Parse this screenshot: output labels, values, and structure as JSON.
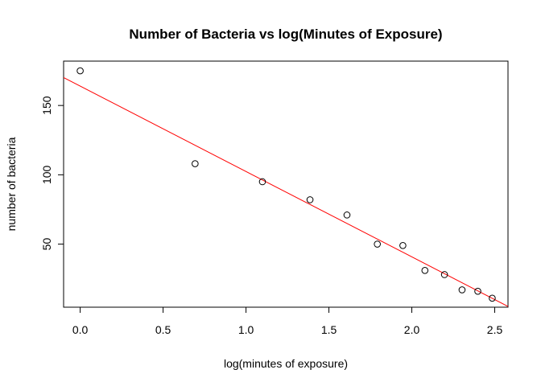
{
  "chart_data": {
    "type": "scatter",
    "title": "Number of Bacteria vs log(Minutes of Exposure)",
    "xlabel": "log(minutes of exposure)",
    "ylabel": "number of bacteria",
    "xlim": [
      -0.1,
      2.58
    ],
    "ylim": [
      4.5,
      182
    ],
    "x_ticks": [
      0.0,
      0.5,
      1.0,
      1.5,
      2.0,
      2.5
    ],
    "x_tick_labels": [
      "0.0",
      "0.5",
      "1.0",
      "1.5",
      "2.0",
      "2.5"
    ],
    "y_ticks": [
      50,
      100,
      150
    ],
    "y_tick_labels": [
      "50",
      "100",
      "150"
    ],
    "grid": false,
    "legend": "none",
    "series": [
      {
        "x": [
          0.0,
          0.693,
          1.099,
          1.386,
          1.609,
          1.792,
          1.946,
          2.079,
          2.197,
          2.303,
          2.398,
          2.485
        ],
        "y": [
          175,
          108,
          95,
          82,
          71,
          50,
          49,
          31,
          28,
          17,
          16,
          11
        ],
        "marker": "open-circle",
        "color": "#000000"
      }
    ],
    "fit_line": {
      "intercept": 164,
      "slope": -61.6,
      "color": "#ff0000"
    }
  }
}
